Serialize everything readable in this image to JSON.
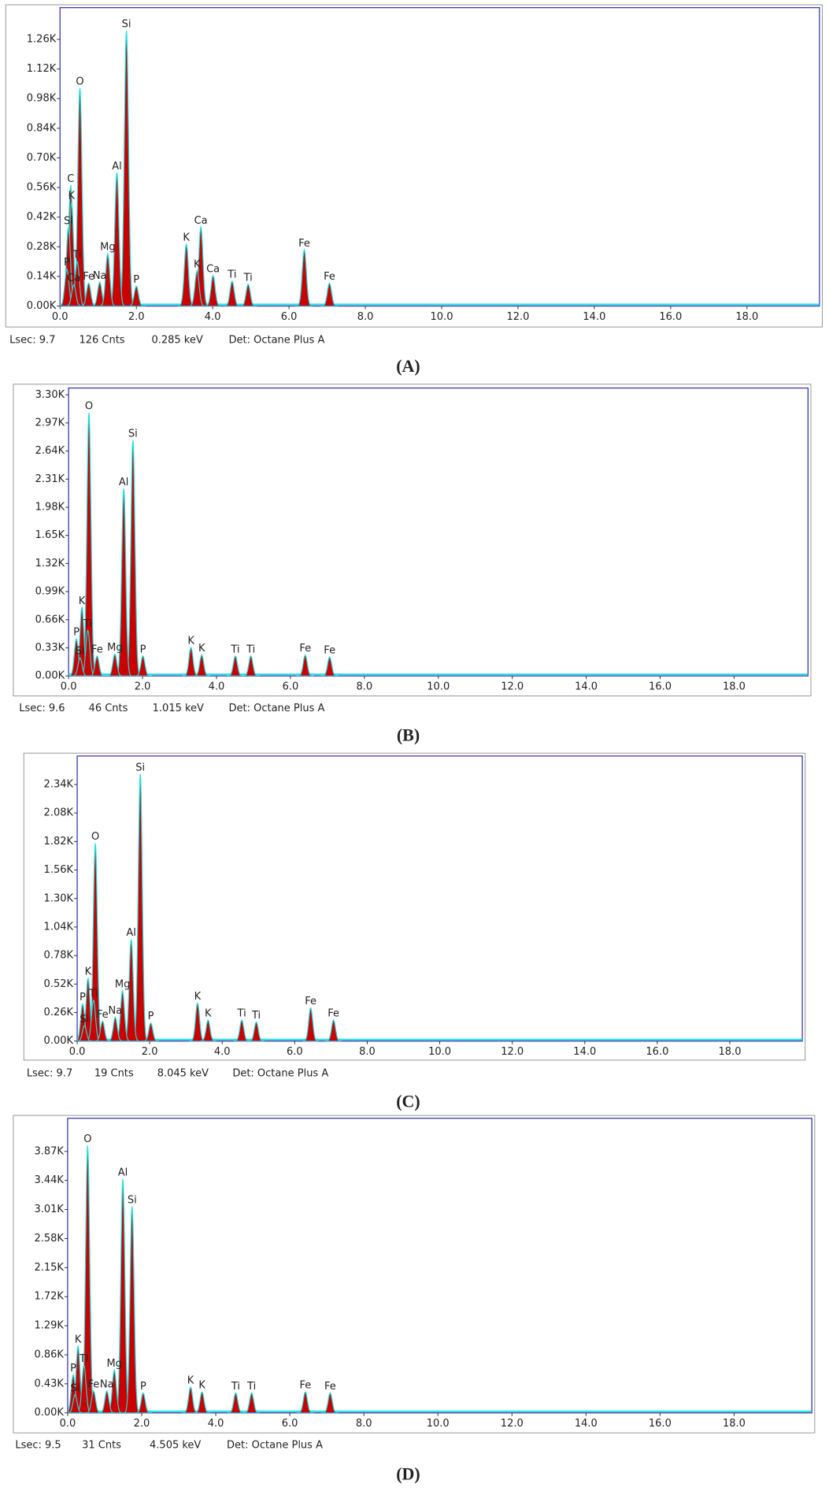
{
  "chart_data": [
    {
      "type": "spectrum",
      "color": "#cc0000",
      "outline": "#19e0e0",
      "xlim": [
        0,
        19.9
      ],
      "ylim": [
        0,
        1410
      ],
      "xticks": [
        {
          "value": 0,
          "label": "0.0"
        },
        {
          "value": 2,
          "label": "2.0"
        },
        {
          "value": 4,
          "label": "4.0"
        },
        {
          "value": 6,
          "label": "6.0"
        },
        {
          "value": 8,
          "label": "8.0"
        },
        {
          "value": 10,
          "label": "10.0"
        },
        {
          "value": 12,
          "label": "12.0"
        },
        {
          "value": 14,
          "label": "14.0"
        },
        {
          "value": 16,
          "label": "16.0"
        },
        {
          "value": 18,
          "label": "18.0"
        }
      ],
      "yticks": [
        {
          "value": 0,
          "label": "0.00K"
        },
        {
          "value": 140,
          "label": "0.14K"
        },
        {
          "value": 280,
          "label": "0.28K"
        },
        {
          "value": 420,
          "label": "0.42K"
        },
        {
          "value": 560,
          "label": "0.56K"
        },
        {
          "value": 700,
          "label": "0.70K"
        },
        {
          "value": 840,
          "label": "0.84K"
        },
        {
          "value": 980,
          "label": "0.98K"
        },
        {
          "value": 1120,
          "label": "1.12K"
        },
        {
          "value": 1260,
          "label": "1.26K"
        }
      ],
      "peaks": [
        {
          "label": "O",
          "x": 0.52,
          "y": 1030
        },
        {
          "label": "Si",
          "x": 1.74,
          "y": 1300
        },
        {
          "label": "Al",
          "x": 1.49,
          "y": 630
        },
        {
          "label": "C",
          "x": 0.28,
          "y": 570
        },
        {
          "label": "K",
          "x": 0.3,
          "y": 490
        },
        {
          "label": "Si",
          "x": 0.22,
          "y": 370
        },
        {
          "label": "Ti",
          "x": 0.45,
          "y": 210
        },
        {
          "label": "P",
          "x": 0.18,
          "y": 175
        },
        {
          "label": "Ca",
          "x": 0.36,
          "y": 100
        },
        {
          "label": "Fe",
          "x": 0.75,
          "y": 108
        },
        {
          "label": "Na",
          "x": 1.04,
          "y": 112
        },
        {
          "label": "Mg",
          "x": 1.25,
          "y": 247
        },
        {
          "label": "P",
          "x": 2.0,
          "y": 94
        },
        {
          "label": "K",
          "x": 3.31,
          "y": 292
        },
        {
          "label": "Ca",
          "x": 3.69,
          "y": 373
        },
        {
          "label": "K",
          "x": 3.59,
          "y": 166
        },
        {
          "label": "Ca",
          "x": 4.01,
          "y": 144
        },
        {
          "label": "Ti",
          "x": 4.51,
          "y": 117
        },
        {
          "label": "Ti",
          "x": 4.93,
          "y": 103
        },
        {
          "label": "Fe",
          "x": 6.4,
          "y": 265
        },
        {
          "label": "Fe",
          "x": 7.06,
          "y": 108
        }
      ],
      "lsec": "Lsec: 9.7",
      "counts": "126 Cnts",
      "energy": "0.285 keV",
      "detector": "Det: Octane Plus A",
      "caption": "(A)"
    },
    {
      "type": "spectrum",
      "color": "#cc0000",
      "outline": "#19e0e0",
      "xlim": [
        0,
        20.0
      ],
      "ylim": [
        0,
        3380
      ],
      "xticks": [
        {
          "value": 0,
          "label": "0.0"
        },
        {
          "value": 2,
          "label": "2.0"
        },
        {
          "value": 4,
          "label": "4.0"
        },
        {
          "value": 6,
          "label": "6.0"
        },
        {
          "value": 8,
          "label": "8.0"
        },
        {
          "value": 10,
          "label": "10.0"
        },
        {
          "value": 12,
          "label": "12.0"
        },
        {
          "value": 14,
          "label": "14.0"
        },
        {
          "value": 16,
          "label": "16.0"
        },
        {
          "value": 18,
          "label": "18.0"
        }
      ],
      "yticks": [
        {
          "value": 0,
          "label": "0.00K"
        },
        {
          "value": 330,
          "label": "0.33K"
        },
        {
          "value": 660,
          "label": "0.66K"
        },
        {
          "value": 990,
          "label": "0.99K"
        },
        {
          "value": 1320,
          "label": "1.32K"
        },
        {
          "value": 1650,
          "label": "1.65K"
        },
        {
          "value": 1980,
          "label": "1.98K"
        },
        {
          "value": 2310,
          "label": "2.31K"
        },
        {
          "value": 2640,
          "label": "2.64K"
        },
        {
          "value": 2970,
          "label": "2.97K"
        },
        {
          "value": 3300,
          "label": "3.30K"
        }
      ],
      "peaks": [
        {
          "label": "O",
          "x": 0.55,
          "y": 3090
        },
        {
          "label": "Si",
          "x": 1.74,
          "y": 2765
        },
        {
          "label": "Al",
          "x": 1.49,
          "y": 2197
        },
        {
          "label": "K",
          "x": 0.36,
          "y": 803
        },
        {
          "label": "P",
          "x": 0.21,
          "y": 435
        },
        {
          "label": "Ti",
          "x": 0.52,
          "y": 535
        },
        {
          "label": "Si",
          "x": 0.31,
          "y": 212
        },
        {
          "label": "Fe",
          "x": 0.77,
          "y": 234
        },
        {
          "label": "Mg",
          "x": 1.25,
          "y": 256
        },
        {
          "label": "P",
          "x": 2.01,
          "y": 234
        },
        {
          "label": "K",
          "x": 3.31,
          "y": 334
        },
        {
          "label": "K",
          "x": 3.6,
          "y": 245
        },
        {
          "label": "Ti",
          "x": 4.51,
          "y": 234
        },
        {
          "label": "Ti",
          "x": 4.93,
          "y": 234
        },
        {
          "label": "Fe",
          "x": 6.4,
          "y": 245
        },
        {
          "label": "Fe",
          "x": 7.06,
          "y": 223
        }
      ],
      "lsec": "Lsec: 9.6",
      "counts": "46 Cnts",
      "energy": "1.015 keV",
      "detector": "Det: Octane Plus A",
      "caption": "(B)"
    },
    {
      "type": "spectrum",
      "color": "#cc0000",
      "outline": "#19e0e0",
      "xlim": [
        0,
        20.0
      ],
      "ylim": [
        0,
        2600
      ],
      "xticks": [
        {
          "value": 0,
          "label": "0.0"
        },
        {
          "value": 2,
          "label": "2.0"
        },
        {
          "value": 4,
          "label": "4.0"
        },
        {
          "value": 6,
          "label": "6.0"
        },
        {
          "value": 8,
          "label": "8.0"
        },
        {
          "value": 10,
          "label": "10.0"
        },
        {
          "value": 12,
          "label": "12.0"
        },
        {
          "value": 14,
          "label": "14.0"
        },
        {
          "value": 16,
          "label": "16.0"
        },
        {
          "value": 18,
          "label": "18.0"
        }
      ],
      "yticks": [
        {
          "value": 0,
          "label": "0.00K"
        },
        {
          "value": 260,
          "label": "0.26K"
        },
        {
          "value": 520,
          "label": "0.52K"
        },
        {
          "value": 780,
          "label": "0.78K"
        },
        {
          "value": 1040,
          "label": "1.04K"
        },
        {
          "value": 1300,
          "label": "1.30K"
        },
        {
          "value": 1560,
          "label": "1.56K"
        },
        {
          "value": 1820,
          "label": "1.82K"
        },
        {
          "value": 2080,
          "label": "2.08K"
        },
        {
          "value": 2340,
          "label": "2.34K"
        }
      ],
      "peaks": [
        {
          "label": "O",
          "x": 0.5,
          "y": 1803
        },
        {
          "label": "Si",
          "x": 1.74,
          "y": 2435
        },
        {
          "label": "Al",
          "x": 1.49,
          "y": 927
        },
        {
          "label": "Mg",
          "x": 1.25,
          "y": 459
        },
        {
          "label": "K",
          "x": 0.3,
          "y": 572
        },
        {
          "label": "P",
          "x": 0.15,
          "y": 338
        },
        {
          "label": "Ti",
          "x": 0.45,
          "y": 373
        },
        {
          "label": "Si",
          "x": 0.2,
          "y": 139
        },
        {
          "label": "Fe",
          "x": 0.7,
          "y": 182
        },
        {
          "label": "Na",
          "x": 1.05,
          "y": 217
        },
        {
          "label": "P",
          "x": 2.03,
          "y": 165
        },
        {
          "label": "K",
          "x": 3.32,
          "y": 347
        },
        {
          "label": "K",
          "x": 3.61,
          "y": 191
        },
        {
          "label": "Ti",
          "x": 4.54,
          "y": 191
        },
        {
          "label": "Ti",
          "x": 4.94,
          "y": 173
        },
        {
          "label": "Fe",
          "x": 6.44,
          "y": 303
        },
        {
          "label": "Fe",
          "x": 7.07,
          "y": 191
        }
      ],
      "lsec": "Lsec: 9.7",
      "counts": "19 Cnts",
      "energy": "8.045 keV",
      "detector": "Det: Octane Plus A",
      "caption": "(C)"
    },
    {
      "type": "spectrum",
      "color": "#cc0000",
      "outline": "#19e0e0",
      "xlim": [
        0,
        20.1
      ],
      "ylim": [
        0,
        4360
      ],
      "xticks": [
        {
          "value": 0,
          "label": "0.0"
        },
        {
          "value": 2,
          "label": "2.0"
        },
        {
          "value": 4,
          "label": "4.0"
        },
        {
          "value": 6,
          "label": "6.0"
        },
        {
          "value": 8,
          "label": "8.0"
        },
        {
          "value": 10,
          "label": "10.0"
        },
        {
          "value": 12,
          "label": "12.0"
        },
        {
          "value": 14,
          "label": "14.0"
        },
        {
          "value": 16,
          "label": "16.0"
        },
        {
          "value": 18,
          "label": "18.0"
        }
      ],
      "yticks": [
        {
          "value": 0,
          "label": "0.00K"
        },
        {
          "value": 430,
          "label": "0.43K"
        },
        {
          "value": 860,
          "label": "0.86K"
        },
        {
          "value": 1290,
          "label": "1.29K"
        },
        {
          "value": 1720,
          "label": "1.72K"
        },
        {
          "value": 2150,
          "label": "2.15K"
        },
        {
          "value": 2580,
          "label": "2.58K"
        },
        {
          "value": 3010,
          "label": "3.01K"
        },
        {
          "value": 3440,
          "label": "3.44K"
        },
        {
          "value": 3870,
          "label": "3.87K"
        }
      ],
      "peaks": [
        {
          "label": "O",
          "x": 0.54,
          "y": 3954
        },
        {
          "label": "Al",
          "x": 1.49,
          "y": 3461
        },
        {
          "label": "Si",
          "x": 1.74,
          "y": 3053
        },
        {
          "label": "K",
          "x": 0.28,
          "y": 985
        },
        {
          "label": "P",
          "x": 0.15,
          "y": 563
        },
        {
          "label": "Ti",
          "x": 0.44,
          "y": 704
        },
        {
          "label": "Mg",
          "x": 1.26,
          "y": 633
        },
        {
          "label": "Si",
          "x": 0.2,
          "y": 267
        },
        {
          "label": "Fe",
          "x": 0.7,
          "y": 324
        },
        {
          "label": "Na",
          "x": 1.06,
          "y": 324
        },
        {
          "label": "P",
          "x": 2.04,
          "y": 295
        },
        {
          "label": "K",
          "x": 3.32,
          "y": 380
        },
        {
          "label": "K",
          "x": 3.63,
          "y": 310
        },
        {
          "label": "Ti",
          "x": 4.54,
          "y": 295
        },
        {
          "label": "Ti",
          "x": 4.97,
          "y": 295
        },
        {
          "label": "Fe",
          "x": 6.42,
          "y": 310
        },
        {
          "label": "Fe",
          "x": 7.09,
          "y": 295
        }
      ],
      "lsec": "Lsec: 9.5",
      "counts": "31 Cnts",
      "energy": "4.505 keV",
      "detector": "Det: Octane Plus A",
      "caption": "(D)"
    }
  ]
}
